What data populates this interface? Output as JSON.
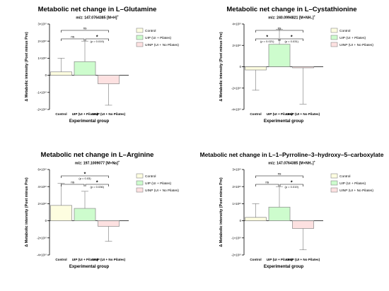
{
  "legend_colors": [
    "#fdfde0",
    "#cdfccd",
    "#fde1e1"
  ],
  "chart_data": [
    {
      "type": "bar",
      "title": "Metabolic net change in L–Glutamine",
      "subtitle_main": "m/z: 147.0764385 [M+H]",
      "subtitle_sup": "+",
      "ylabel": "Δ Metabolic intensity (Post minus Pre)",
      "xlabel": "Experimental group",
      "ylim": [
        -20000000000.0,
        30000000000.0
      ],
      "yticks": [
        -20000000000.0,
        -10000000000.0,
        0,
        10000000000.0,
        20000000000.0,
        30000000000.0
      ],
      "ytick_labels": [
        "-2×10¹⁰",
        "-1×10¹⁰",
        "0",
        "1×10¹⁰",
        "2×10¹⁰",
        "3×10¹⁰"
      ],
      "categories": [
        "Control",
        "UIP (UI + Pilates)",
        "UINP (UI + No Pilates)"
      ],
      "legend": [
        "Control",
        "UIP (UI + Pilates)",
        "UINP (UI + No Pilates)"
      ],
      "legend_position": "top-right",
      "values": [
        2000000000.0,
        8000000000.0,
        -5000000000.0
      ],
      "errors": [
        8000000000.0,
        12000000000.0,
        12500000000.0
      ],
      "brackets": [
        {
          "from": 0,
          "to": 2,
          "label": "ns",
          "level": 1
        },
        {
          "from": 0,
          "to": 1,
          "label": "ns",
          "level": 0
        },
        {
          "from": 1,
          "to": 2,
          "label": "*",
          "level": 0,
          "note": "(p = 0.019)"
        }
      ]
    },
    {
      "type": "bar",
      "title": "Metabolic net change in L–Cystathionine",
      "subtitle_main": "m/z: 240.0994821 [M+NH₄]",
      "subtitle_sup": "+",
      "ylabel": "Δ Metabolic intensity (Post minus Pre)",
      "xlabel": "Experimental group",
      "ylim": [
        -40000000000.0,
        40000000000.0
      ],
      "yticks": [
        -40000000000.0,
        -20000000000.0,
        0,
        20000000000.0,
        40000000000.0
      ],
      "ytick_labels": [
        "-4×10¹⁰",
        "-2×10¹⁰",
        "0",
        "2×10¹⁰",
        "4×10¹⁰"
      ],
      "categories": [
        "Control",
        "UIP (UI + Pilates)",
        "UINP (UI + No Pilates)"
      ],
      "legend": [
        "Control",
        "UIP (UI + Pilates)",
        "UINP (UI + No Pilates)"
      ],
      "legend_position": "top-right",
      "values": [
        -3000000000.0,
        21000000000.0,
        -1000000000.0
      ],
      "errors": [
        19000000000.0,
        14000000000.0,
        34000000000.0
      ],
      "brackets": [
        {
          "from": 0,
          "to": 2,
          "label": "ns",
          "level": 1
        },
        {
          "from": 0,
          "to": 1,
          "label": "*",
          "level": 0,
          "note": "(p = 0.021)"
        },
        {
          "from": 1,
          "to": 2,
          "label": "*",
          "level": 0,
          "note": "(p = 0.031)"
        }
      ]
    },
    {
      "type": "bar",
      "title": "Metabolic net change in L–Arginine",
      "subtitle_main": "m/z: 197.1009077 [M+Na]",
      "subtitle_sup": "+",
      "ylabel": "Δ Metabolic intensity (Post minus Pre)",
      "xlabel": "Experimental group",
      "ylim": [
        -40000000000.0,
        60000000000.0
      ],
      "yticks": [
        -40000000000.0,
        -20000000000.0,
        0,
        20000000000.0,
        40000000000.0,
        60000000000.0
      ],
      "ytick_labels": [
        "-4×10¹⁰",
        "-2×10¹⁰",
        "0",
        "2×10¹⁰",
        "4×10¹⁰",
        "6×10¹⁰"
      ],
      "categories": [
        "Control",
        "UIP (UI + Pilates)",
        "UINP (UI + No Pilates)"
      ],
      "legend": [
        "Control",
        "UIP (UI + Pilates)",
        "UINP (UI + No Pilates)"
      ],
      "legend_position": "top-right",
      "values": [
        18000000000.0,
        14500000000.0,
        -6500000000.0
      ],
      "errors": [
        26000000000.0,
        20000000000.0,
        17500000000.0
      ],
      "brackets": [
        {
          "from": 0,
          "to": 2,
          "label": "*",
          "level": 1,
          "note": "(p = 0.03)"
        },
        {
          "from": 0,
          "to": 1,
          "label": "ns",
          "level": 0
        },
        {
          "from": 1,
          "to": 2,
          "label": "*",
          "level": 0,
          "note": "(p = 0.036)"
        }
      ]
    },
    {
      "type": "bar",
      "title": "Metabolic net change in L–1–Pyrroline–3–hydroxy–5–carboxylate",
      "subtitle_main": "m/z: 147.0764385 [M+NH₄]",
      "subtitle_sup": "+",
      "ylabel": "Δ Metabolic intensity (Post minus Pre)",
      "xlabel": "Experimental group",
      "ylim": [
        -20000000000.0,
        30000000000.0
      ],
      "yticks": [
        -20000000000.0,
        -10000000000.0,
        0,
        10000000000.0,
        20000000000.0,
        30000000000.0
      ],
      "ytick_labels": [
        "-2×10¹⁰",
        "-1×10¹⁰",
        "0",
        "1×10¹⁰",
        "2×10¹⁰",
        "3×10¹⁰"
      ],
      "categories": [
        "Control",
        "UIP (UI + Pilates)",
        "UINP (UI + No Pilates)"
      ],
      "legend": [
        "Control",
        "UIP (UI + Pilates)",
        "UINP (UI + No Pilates)"
      ],
      "legend_position": "top-right",
      "values": [
        2000000000.0,
        8000000000.0,
        -4500000000.0
      ],
      "errors": [
        8000000000.0,
        12000000000.0,
        12500000000.0
      ],
      "brackets": [
        {
          "from": 0,
          "to": 2,
          "label": "ns",
          "level": 1
        },
        {
          "from": 0,
          "to": 1,
          "label": "ns",
          "level": 0
        },
        {
          "from": 1,
          "to": 2,
          "label": "*",
          "level": 0,
          "note": "(p = 0.019)"
        }
      ]
    }
  ]
}
